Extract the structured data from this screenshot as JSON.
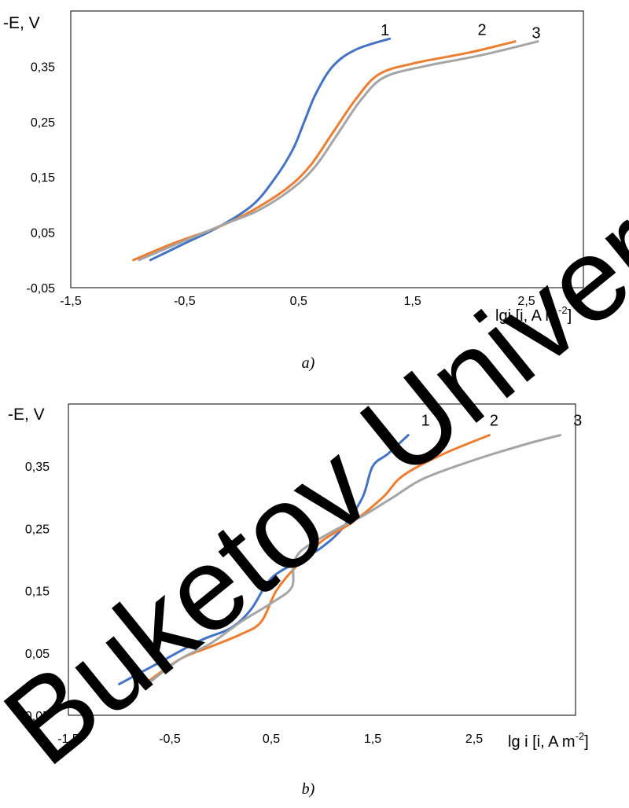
{
  "watermark": "Buketov University",
  "chart_data": [
    {
      "type": "line",
      "caption": "a)",
      "ylabel": "-E, V",
      "xlabel": "lgi [i, A m",
      "xlabel_sup": "-2",
      "xlabel_end": "]",
      "xlim": [
        -1.5,
        3.0
      ],
      "ylim": [
        -0.05,
        0.45
      ],
      "x_ticks": [
        "-1,5",
        "-0,5",
        "0,5",
        "1,5",
        "2,5"
      ],
      "x_tick_values": [
        -1.5,
        -0.5,
        0.5,
        1.5,
        2.5
      ],
      "y_ticks": [
        "-0,05",
        "0,05",
        "0,15",
        "0,25",
        "0,35"
      ],
      "y_tick_values": [
        -0.05,
        0.05,
        0.15,
        0.25,
        0.35
      ],
      "series": [
        {
          "name": "1",
          "color": "#4472C4",
          "points": [
            [
              -0.8,
              0.0
            ],
            [
              -0.5,
              0.03
            ],
            [
              -0.2,
              0.06
            ],
            [
              0.1,
              0.1
            ],
            [
              0.3,
              0.15
            ],
            [
              0.45,
              0.2
            ],
            [
              0.55,
              0.25
            ],
            [
              0.65,
              0.3
            ],
            [
              0.8,
              0.35
            ],
            [
              1.0,
              0.38
            ],
            [
              1.3,
              0.4
            ]
          ]
        },
        {
          "name": "2",
          "color": "#ED7D31",
          "points": [
            [
              -0.95,
              0.0
            ],
            [
              -0.6,
              0.03
            ],
            [
              -0.2,
              0.06
            ],
            [
              0.1,
              0.09
            ],
            [
              0.4,
              0.13
            ],
            [
              0.6,
              0.17
            ],
            [
              0.8,
              0.23
            ],
            [
              1.0,
              0.29
            ],
            [
              1.2,
              0.335
            ],
            [
              1.5,
              0.355
            ],
            [
              2.0,
              0.375
            ],
            [
              2.4,
              0.395
            ]
          ]
        },
        {
          "name": "3",
          "color": "#A5A5A5",
          "points": [
            [
              -0.9,
              0.0
            ],
            [
              -0.5,
              0.035
            ],
            [
              -0.15,
              0.065
            ],
            [
              0.15,
              0.09
            ],
            [
              0.45,
              0.13
            ],
            [
              0.65,
              0.17
            ],
            [
              0.85,
              0.23
            ],
            [
              1.05,
              0.29
            ],
            [
              1.25,
              0.33
            ],
            [
              1.6,
              0.35
            ],
            [
              2.1,
              0.37
            ],
            [
              2.6,
              0.395
            ]
          ]
        }
      ]
    },
    {
      "type": "line",
      "caption": "b)",
      "ylabel": "-E, V",
      "xlabel": "lg i [i, A m",
      "xlabel_sup": "-2",
      "xlabel_end": "]",
      "xlim": [
        -1.5,
        3.5
      ],
      "ylim": [
        -0.05,
        0.45
      ],
      "x_ticks": [
        "-1,5",
        "-0,5",
        "0,5",
        "1,5",
        "2,5"
      ],
      "x_tick_values": [
        -1.5,
        -0.5,
        0.5,
        1.5,
        2.5
      ],
      "y_ticks": [
        "-0,05",
        "0,05",
        "0,15",
        "0,25",
        "0,35"
      ],
      "y_tick_values": [
        -0.05,
        0.05,
        0.15,
        0.25,
        0.35
      ],
      "series": [
        {
          "name": "1",
          "color": "#4472C4",
          "points": [
            [
              -1.0,
              0.0
            ],
            [
              -0.6,
              0.035
            ],
            [
              -0.2,
              0.07
            ],
            [
              0.1,
              0.09
            ],
            [
              0.3,
              0.12
            ],
            [
              0.5,
              0.17
            ],
            [
              0.8,
              0.2
            ],
            [
              1.0,
              0.22
            ],
            [
              1.2,
              0.25
            ],
            [
              1.4,
              0.3
            ],
            [
              1.5,
              0.35
            ],
            [
              1.65,
              0.37
            ],
            [
              1.85,
              0.4
            ]
          ]
        },
        {
          "name": "2",
          "color": "#ED7D31",
          "points": [
            [
              -0.75,
              0.0
            ],
            [
              -0.4,
              0.04
            ],
            [
              -0.1,
              0.06
            ],
            [
              0.2,
              0.08
            ],
            [
              0.4,
              0.1
            ],
            [
              0.55,
              0.15
            ],
            [
              0.75,
              0.19
            ],
            [
              1.0,
              0.23
            ],
            [
              1.3,
              0.26
            ],
            [
              1.6,
              0.3
            ],
            [
              1.8,
              0.335
            ],
            [
              2.2,
              0.37
            ],
            [
              2.65,
              0.4
            ]
          ]
        },
        {
          "name": "3",
          "color": "#A5A5A5",
          "points": [
            [
              -0.72,
              0.0
            ],
            [
              -0.4,
              0.04
            ],
            [
              -0.1,
              0.065
            ],
            [
              0.2,
              0.1
            ],
            [
              0.5,
              0.13
            ],
            [
              0.7,
              0.155
            ],
            [
              0.72,
              0.19
            ],
            [
              0.8,
              0.215
            ],
            [
              1.1,
              0.245
            ],
            [
              1.4,
              0.27
            ],
            [
              1.7,
              0.3
            ],
            [
              2.0,
              0.33
            ],
            [
              2.5,
              0.36
            ],
            [
              3.0,
              0.385
            ],
            [
              3.35,
              0.4
            ]
          ]
        }
      ]
    }
  ]
}
